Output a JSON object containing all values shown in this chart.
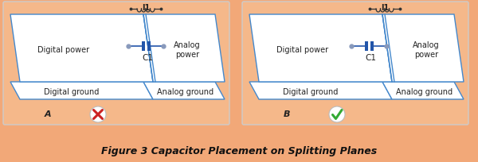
{
  "bg_color": "#f2a878",
  "panel_bg": "#f5b88a",
  "title": "Figure 3 Capacitor Placement on Splitting Planes",
  "title_fontsize": 9,
  "label_A": "A",
  "label_B": "B",
  "I1_label": "I1",
  "C1_label": "C1",
  "digital_power": "Digital power",
  "analog_power": "Analog\npower",
  "digital_ground": "Digital ground",
  "analog_ground": "Analog ground",
  "plane_fill": "#ffffff",
  "plane_edge": "#4488cc",
  "cap_color": "#2255aa",
  "wrong_color": "#cc2222",
  "right_color": "#33aa33",
  "text_color": "#222222",
  "panel_edge": "#cccccc"
}
